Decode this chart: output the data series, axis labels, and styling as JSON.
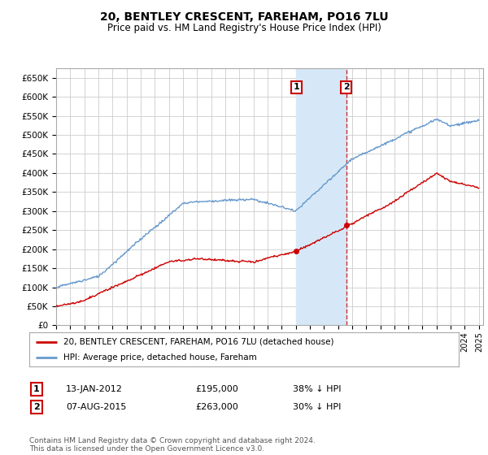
{
  "title": "20, BENTLEY CRESCENT, FAREHAM, PO16 7LU",
  "subtitle": "Price paid vs. HM Land Registry's House Price Index (HPI)",
  "ylim": [
    0,
    675000
  ],
  "yticks": [
    0,
    50000,
    100000,
    150000,
    200000,
    250000,
    300000,
    350000,
    400000,
    450000,
    500000,
    550000,
    600000,
    650000
  ],
  "ytick_labels": [
    "£0",
    "£50K",
    "£100K",
    "£150K",
    "£200K",
    "£250K",
    "£300K",
    "£350K",
    "£400K",
    "£450K",
    "£500K",
    "£550K",
    "£600K",
    "£650K"
  ],
  "background_color": "#ffffff",
  "grid_color": "#cccccc",
  "hpi_color": "#6699cc",
  "price_color": "#cc0000",
  "shade_color": "#d6e8f7",
  "sale1_date": 2012.04,
  "sale1_price": 195000,
  "sale1_label": "1",
  "sale2_date": 2015.59,
  "sale2_price": 263000,
  "sale2_label": "2",
  "legend_entries": [
    "20, BENTLEY CRESCENT, FAREHAM, PO16 7LU (detached house)",
    "HPI: Average price, detached house, Fareham"
  ],
  "table_row1": [
    "1",
    "13-JAN-2012",
    "£195,000",
    "38% ↓ HPI"
  ],
  "table_row2": [
    "2",
    "07-AUG-2015",
    "£263,000",
    "30% ↓ HPI"
  ],
  "footer": "Contains HM Land Registry data © Crown copyright and database right 2024.\nThis data is licensed under the Open Government Licence v3.0."
}
